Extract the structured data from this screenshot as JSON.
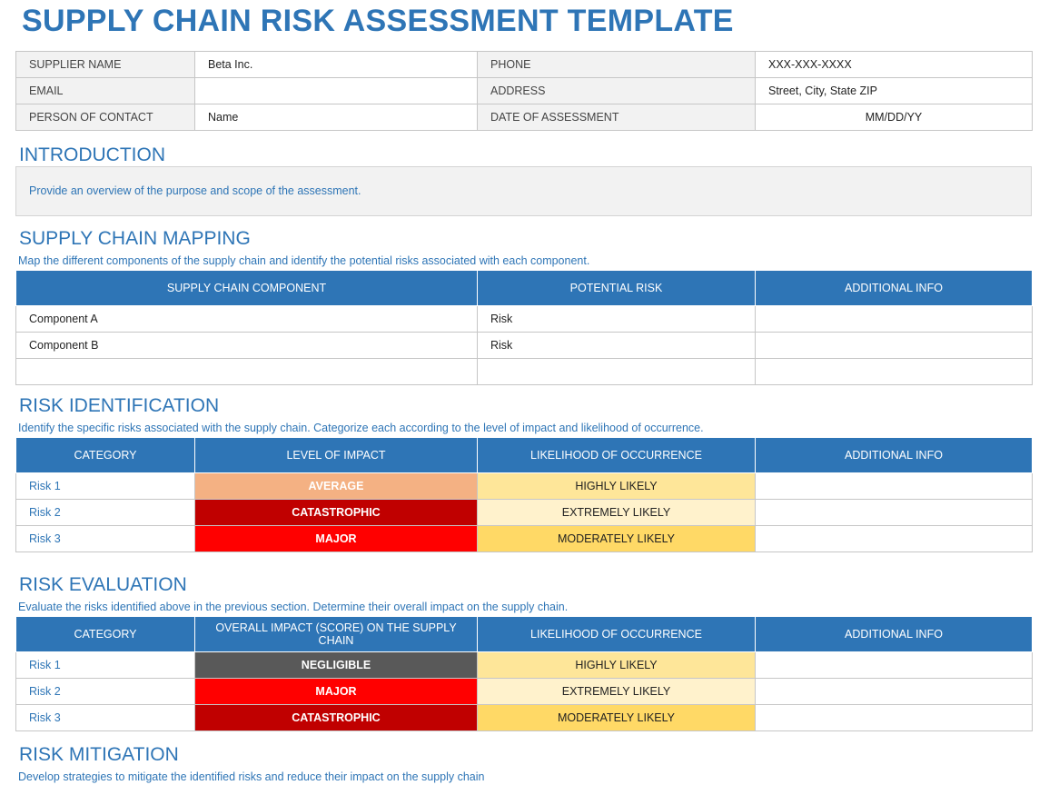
{
  "title": "SUPPLY CHAIN RISK ASSESSMENT TEMPLATE",
  "info": {
    "supplier_name_label": "SUPPLIER NAME",
    "supplier_name": "Beta Inc.",
    "phone_label": "PHONE",
    "phone": "XXX-XXX-XXXX",
    "email_label": "EMAIL",
    "email": "",
    "address_label": "ADDRESS",
    "address": "Street, City, State ZIP",
    "contact_label": "PERSON OF CONTACT",
    "contact": "Name",
    "date_label": "DATE OF ASSESSMENT",
    "date": "MM/DD/YY"
  },
  "introduction": {
    "title": "INTRODUCTION",
    "text": "Provide an overview of the purpose and scope of the assessment."
  },
  "mapping": {
    "title": "SUPPLY CHAIN MAPPING",
    "subtitle": "Map the different components of the supply chain and identify the potential risks associated with each component.",
    "headers": [
      "SUPPLY CHAIN COMPONENT",
      "POTENTIAL RISK",
      "ADDITIONAL INFO"
    ],
    "rows": [
      [
        "Component A",
        "Risk",
        ""
      ],
      [
        "Component B",
        "Risk",
        ""
      ],
      [
        "",
        "",
        ""
      ]
    ]
  },
  "identification": {
    "title": "RISK IDENTIFICATION",
    "subtitle": "Identify the specific risks associated with the supply chain. Categorize each according to the level of impact and likelihood of occurrence.",
    "headers": [
      "CATEGORY",
      "LEVEL OF IMPACT",
      "LIKELIHOOD OF OCCURRENCE",
      "ADDITIONAL INFO"
    ],
    "rows": [
      {
        "category": "Risk 1",
        "impact": "AVERAGE",
        "impact_color": "#f4b183",
        "likelihood": "HIGHLY LIKELY",
        "likelihood_color": "#fee699",
        "info": ""
      },
      {
        "category": "Risk 2",
        "impact": "CATASTROPHIC",
        "impact_color": "#c00000",
        "likelihood": "EXTREMELY LIKELY",
        "likelihood_color": "#fff2cc",
        "info": ""
      },
      {
        "category": "Risk 3",
        "impact": "MAJOR",
        "impact_color": "#ff0000",
        "likelihood": "MODERATELY LIKELY",
        "likelihood_color": "#ffd966",
        "info": ""
      }
    ]
  },
  "evaluation": {
    "title": "RISK EVALUATION",
    "subtitle": "Evaluate the risks identified above in the previous section. Determine their overall impact on the supply chain.",
    "headers": [
      "CATEGORY",
      "OVERALL IMPACT (SCORE) ON THE SUPPLY CHAIN",
      "LIKELIHOOD OF OCCURRENCE",
      "ADDITIONAL INFO"
    ],
    "rows": [
      {
        "category": "Risk 1",
        "impact": "NEGLIGIBLE",
        "impact_color": "#595959",
        "likelihood": "HIGHLY LIKELY",
        "likelihood_color": "#fee699",
        "info": ""
      },
      {
        "category": "Risk 2",
        "impact": "MAJOR",
        "impact_color": "#ff0000",
        "likelihood": "EXTREMELY LIKELY",
        "likelihood_color": "#fff2cc",
        "info": ""
      },
      {
        "category": "Risk 3",
        "impact": "CATASTROPHIC",
        "impact_color": "#c00000",
        "likelihood": "MODERATELY LIKELY",
        "likelihood_color": "#ffd966",
        "info": ""
      }
    ]
  },
  "mitigation": {
    "title": "RISK MITIGATION",
    "subtitle": "Develop strategies to mitigate the identified risks and reduce their impact on the supply chain"
  }
}
